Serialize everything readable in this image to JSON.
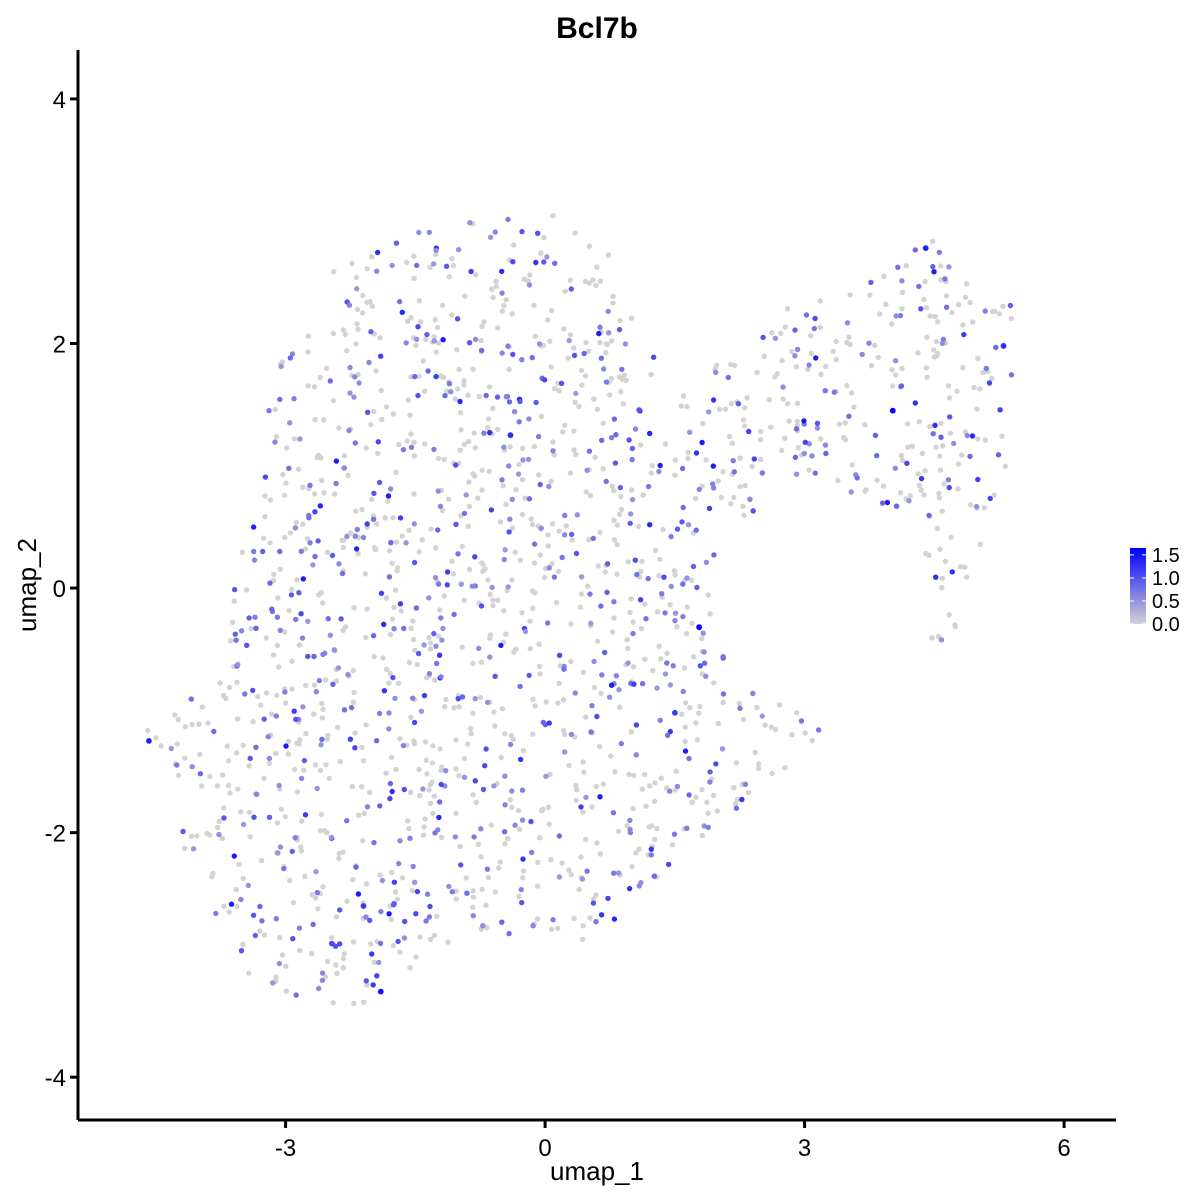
{
  "chart_data": {
    "type": "scatter",
    "title": "Bcl7b",
    "xlabel": "umap_1",
    "ylabel": "umap_2",
    "xlim": [
      -5.4,
      6.6
    ],
    "ylim": [
      -4.35,
      4.4
    ],
    "xticks": [
      -3,
      0,
      3,
      6
    ],
    "yticks": [
      -4,
      -2,
      0,
      2,
      4
    ],
    "grid": false,
    "legend": {
      "placement": "right",
      "type": "colorbar",
      "ticks": [
        1.5,
        1.0,
        0.5,
        0.0
      ],
      "tick_labels": [
        "1.5",
        "1.0",
        "0.5",
        "0.0"
      ],
      "range": [
        0,
        1.65
      ],
      "low_color": "#d3d3d3",
      "high_color": "#0000ff"
    },
    "points_summary": {
      "n_points": 1800,
      "note_colors": "grey = 0 expression, purple-blue = higher expression"
    },
    "highlight_points": [
      {
        "x": 1.78,
        "y": -0.32,
        "value": 1.65
      },
      {
        "x": 4.02,
        "y": 1.45,
        "value": 1.6
      },
      {
        "x": -1.9,
        "y": -3.3,
        "value": 1.5
      },
      {
        "x": -4.58,
        "y": -1.25,
        "value": 1.4
      },
      {
        "x": 4.4,
        "y": 2.78,
        "value": 1.4
      },
      {
        "x": -0.4,
        "y": 1.25,
        "value": 1.3
      },
      {
        "x": 5.3,
        "y": 1.98,
        "value": 1.3
      },
      {
        "x": 1.5,
        "y": -1.02,
        "value": 1.2
      },
      {
        "x": -2.1,
        "y": -2.6,
        "value": 1.2
      }
    ]
  }
}
